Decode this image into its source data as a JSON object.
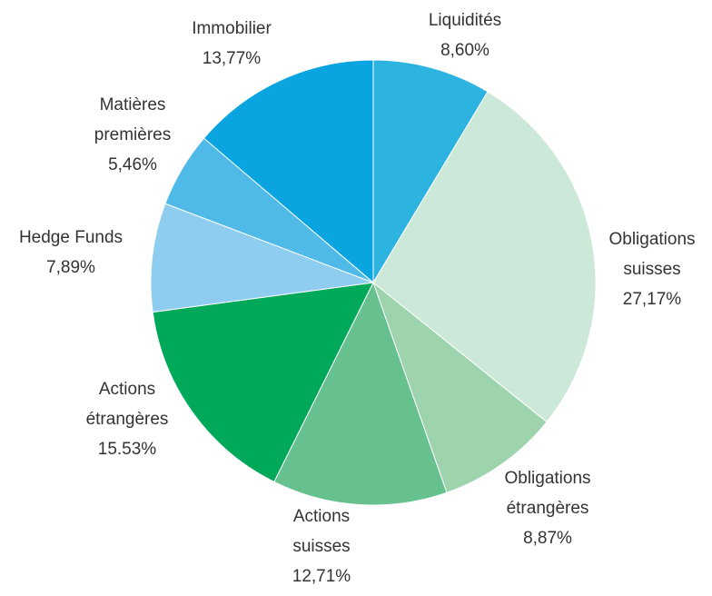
{
  "chart_data": {
    "type": "pie",
    "categories": [
      "Liquidités",
      "Obligations suisses",
      "Obligations étrangères",
      "Actions suisses",
      "Actions étrangères",
      "Hedge Funds",
      "Matières premières",
      "Immobilier"
    ],
    "values": [
      8.6,
      27.17,
      8.87,
      12.71,
      15.53,
      7.89,
      5.46,
      13.77
    ],
    "value_labels": [
      "8,60%",
      "27,17%",
      "8,87%",
      "12,71%",
      "15.53%",
      "7,89%",
      "5,46%",
      "13,77%"
    ],
    "colors": [
      "#2db3e0",
      "#cce8d8",
      "#9dd4ae",
      "#66c18f",
      "#00a859",
      "#8ecdf0",
      "#4fb9e8",
      "#0aa5e0"
    ]
  }
}
